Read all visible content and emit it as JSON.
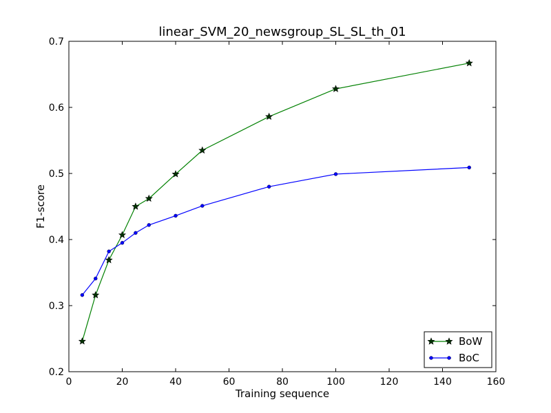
{
  "chart_data": {
    "type": "line",
    "title": "linear_SVM_20_newsgroup_SL_SL_th_01",
    "xlabel": "Training sequence",
    "ylabel": "F1-score",
    "xlim": [
      0,
      160
    ],
    "ylim": [
      0.2,
      0.7
    ],
    "xticks": [
      0,
      20,
      40,
      60,
      80,
      100,
      120,
      140,
      160
    ],
    "yticks": [
      0.2,
      0.3,
      0.4,
      0.5,
      0.6,
      0.7
    ],
    "grid": false,
    "legend_position": "bottom-right",
    "series": [
      {
        "name": "BoW",
        "color": "#008000",
        "marker": "star",
        "x": [
          5,
          10,
          15,
          20,
          25,
          30,
          40,
          50,
          75,
          100,
          150
        ],
        "y": [
          0.246,
          0.316,
          0.369,
          0.407,
          0.45,
          0.462,
          0.499,
          0.535,
          0.586,
          0.628,
          0.667
        ]
      },
      {
        "name": "BoC",
        "color": "#0000ff",
        "marker": "dot",
        "x": [
          5,
          10,
          15,
          20,
          25,
          30,
          40,
          50,
          75,
          100,
          150
        ],
        "y": [
          0.316,
          0.341,
          0.382,
          0.395,
          0.41,
          0.422,
          0.436,
          0.451,
          0.48,
          0.499,
          0.509
        ]
      }
    ]
  }
}
